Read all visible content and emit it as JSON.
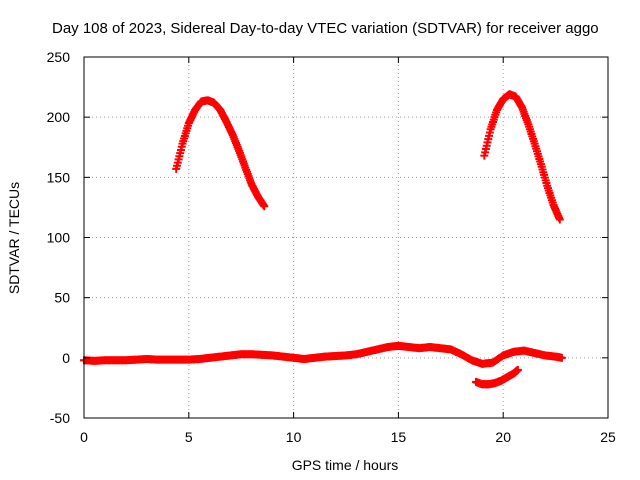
{
  "chart_data": {
    "type": "scatter",
    "title": "Day 108 of 2023, Sidereal Day-to-day VTEC variation (SDTVAR) for receiver aggo",
    "xlabel": "GPS time / hours",
    "ylabel": "SDTVAR / TECUs",
    "xlim": [
      0,
      25
    ],
    "ylim": [
      -50,
      250
    ],
    "xticks": [
      0,
      5,
      10,
      15,
      20,
      25
    ],
    "yticks": [
      -50,
      0,
      50,
      100,
      150,
      200,
      250
    ],
    "grid": true,
    "marker": "plus",
    "color": "#ff0000",
    "series": [
      {
        "name": "arc-low",
        "x": [
          0,
          0.5,
          1,
          1.5,
          2,
          2.5,
          3,
          3.5,
          4,
          4.5,
          5,
          5.5,
          6,
          6.5,
          7,
          7.5,
          8,
          8.5,
          9,
          9.5,
          10,
          10.5,
          11,
          11.5,
          12,
          12.5,
          13,
          13.5,
          14,
          14.5,
          15,
          15.5,
          16,
          16.5,
          17,
          17.5,
          18,
          18.5,
          19,
          19.5,
          20,
          20.5,
          21,
          21.5,
          22,
          22.5,
          22.8
        ],
        "y": [
          -2,
          -2.5,
          -2,
          -2,
          -2,
          -1.5,
          -1,
          -1.5,
          -1.5,
          -1.5,
          -1.5,
          -1,
          0,
          1,
          2,
          3,
          3,
          2.5,
          2,
          1,
          0,
          -1,
          0,
          1,
          1.5,
          2,
          3,
          5,
          7,
          9,
          10,
          9,
          8,
          9,
          8,
          7,
          3,
          -2,
          -5,
          -4,
          2,
          5,
          6,
          4,
          2,
          1,
          0
        ]
      },
      {
        "name": "arc-dip",
        "x": [
          18.7,
          19,
          19.3,
          19.6,
          19.9,
          20.2,
          20.5,
          20.7
        ],
        "y": [
          -20,
          -22,
          -22,
          -21,
          -19,
          -16,
          -13,
          -10
        ]
      },
      {
        "name": "arc-high-1",
        "x": [
          4.4,
          4.7,
          5,
          5.3,
          5.6,
          5.9,
          6.2,
          6.5,
          6.8,
          7.1,
          7.4,
          7.7,
          8,
          8.3,
          8.6
        ],
        "y": [
          157,
          178,
          195,
          206,
          213,
          214,
          212,
          206,
          196,
          185,
          172,
          158,
          144,
          134,
          126
        ]
      },
      {
        "name": "arc-high-2",
        "x": [
          19.1,
          19.4,
          19.7,
          20,
          20.3,
          20.6,
          20.9,
          21.2,
          21.5,
          21.8,
          22.1,
          22.4,
          22.7
        ],
        "y": [
          168,
          190,
          206,
          215,
          219,
          217,
          208,
          194,
          178,
          161,
          143,
          127,
          115
        ]
      }
    ]
  }
}
